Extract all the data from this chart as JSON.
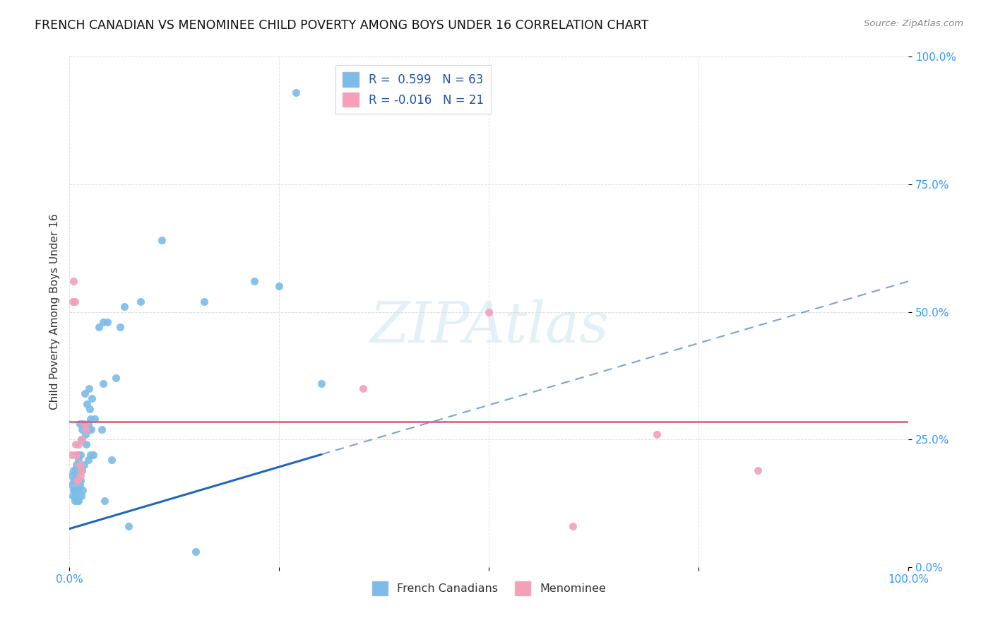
{
  "title": "FRENCH CANADIAN VS MENOMINEE CHILD POVERTY AMONG BOYS UNDER 16 CORRELATION CHART",
  "source": "Source: ZipAtlas.com",
  "ylabel": "Child Poverty Among Boys Under 16",
  "french_R": 0.599,
  "french_N": 63,
  "menominee_R": -0.016,
  "menominee_N": 21,
  "french_color": "#7bbce8",
  "menominee_color": "#f4a0b8",
  "french_line_color": "#2266bb",
  "menominee_line_color": "#e05575",
  "french_scatter_x": [
    0.003,
    0.003,
    0.004,
    0.005,
    0.005,
    0.005,
    0.006,
    0.006,
    0.007,
    0.007,
    0.008,
    0.008,
    0.009,
    0.009,
    0.01,
    0.01,
    0.011,
    0.011,
    0.012,
    0.012,
    0.013,
    0.013,
    0.014,
    0.014,
    0.015,
    0.015,
    0.016,
    0.016,
    0.017,
    0.018,
    0.019,
    0.02,
    0.021,
    0.022,
    0.022,
    0.023,
    0.023,
    0.024,
    0.025,
    0.025,
    0.026,
    0.027,
    0.028,
    0.03,
    0.035,
    0.038,
    0.04,
    0.04,
    0.042,
    0.045,
    0.05,
    0.055,
    0.06,
    0.065,
    0.07,
    0.085,
    0.11,
    0.15,
    0.16,
    0.22,
    0.25,
    0.27,
    0.3
  ],
  "french_scatter_y": [
    0.16,
    0.18,
    0.14,
    0.15,
    0.17,
    0.19,
    0.13,
    0.15,
    0.14,
    0.19,
    0.17,
    0.2,
    0.13,
    0.18,
    0.15,
    0.22,
    0.13,
    0.21,
    0.16,
    0.28,
    0.17,
    0.22,
    0.14,
    0.25,
    0.19,
    0.27,
    0.15,
    0.28,
    0.2,
    0.34,
    0.26,
    0.24,
    0.32,
    0.21,
    0.28,
    0.27,
    0.35,
    0.31,
    0.22,
    0.29,
    0.27,
    0.33,
    0.22,
    0.29,
    0.47,
    0.27,
    0.36,
    0.48,
    0.13,
    0.48,
    0.21,
    0.37,
    0.47,
    0.51,
    0.08,
    0.52,
    0.64,
    0.03,
    0.52,
    0.56,
    0.55,
    0.93,
    0.36
  ],
  "menominee_scatter_x": [
    0.002,
    0.004,
    0.005,
    0.006,
    0.007,
    0.007,
    0.008,
    0.009,
    0.01,
    0.011,
    0.012,
    0.013,
    0.014,
    0.015,
    0.017,
    0.02,
    0.35,
    0.5,
    0.6,
    0.7,
    0.82
  ],
  "menominee_scatter_y": [
    0.22,
    0.52,
    0.56,
    0.52,
    0.22,
    0.24,
    0.22,
    0.17,
    0.17,
    0.24,
    0.2,
    0.18,
    0.19,
    0.25,
    0.28,
    0.27,
    0.35,
    0.5,
    0.08,
    0.26,
    0.19
  ],
  "watermark": "ZIPAtlas",
  "background_color": "#ffffff",
  "grid_color": "#d8d8d8",
  "xlim": [
    0,
    1
  ],
  "ylim": [
    0,
    1
  ],
  "yticks": [
    0.0,
    0.25,
    0.5,
    0.75,
    1.0
  ],
  "ytick_labels": [
    "0.0%",
    "25.0%",
    "50.0%",
    "75.0%",
    "100.0%"
  ],
  "xticks": [
    0.0,
    0.25,
    0.5,
    0.75,
    1.0
  ],
  "xtick_labels": [
    "0.0%",
    "",
    "",
    "",
    "100.0%"
  ],
  "french_line_x0": 0.0,
  "french_line_x1": 1.0,
  "french_line_y0": 0.075,
  "french_line_y1": 0.56,
  "menominee_line_y": 0.285
}
